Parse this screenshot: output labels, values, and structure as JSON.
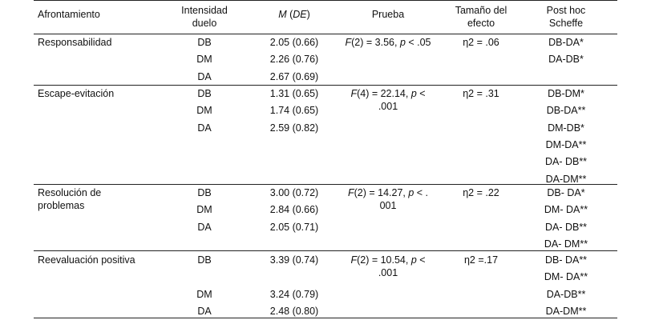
{
  "table": {
    "header": [
      "Afrontamiento",
      "Intensidad duelo",
      [
        "M",
        " (",
        "DE",
        ")"
      ],
      "Prueba",
      "Tamaño del efecto",
      "Post hoc Scheffe"
    ],
    "groups": [
      {
        "name": "Responsabilidad",
        "rows": [
          [
            "DB",
            "2.05 (0.66)"
          ],
          [
            "DM",
            "2.26 (0.76)"
          ],
          [
            "DA",
            "2.67 (0.69)"
          ]
        ],
        "test": [
          "F",
          "(2) = 3.56, ",
          "p",
          " < .05"
        ],
        "effect": "η2 = .06",
        "posthoc": [
          "DB-DA*",
          "DA-DB*"
        ]
      },
      {
        "name": "Escape-evitación",
        "rows": [
          [
            "DB",
            "1.31 (0.65)"
          ],
          [
            "DM",
            "1.74 (0.65)"
          ],
          [
            "DA",
            "2.59 (0.82)"
          ]
        ],
        "test": [
          "F",
          "(4) = 22.14, ",
          "p",
          " < .001"
        ],
        "effect": "η2 = .31",
        "posthoc": [
          "DB-DM*",
          "DB-DA**",
          "DM-DB*",
          "DM-DA**",
          "DA- DB**",
          "DA-DM**"
        ]
      },
      {
        "name": "Resolución de problemas",
        "rows": [
          [
            "DB",
            "3.00 (0.72)"
          ],
          [
            "DM",
            "2.84 (0.66)"
          ],
          [
            "DA",
            "2.05 (0.71)"
          ]
        ],
        "test": [
          "F",
          "(2) = 14.27, ",
          "p",
          " < . 001"
        ],
        "effect": "η2 = .22",
        "posthoc": [
          "DB- DA*",
          "DM- DA**",
          "DA- DB**",
          "DA- DM**"
        ]
      },
      {
        "name": "Reevaluación positiva",
        "rows": [
          [
            "DB",
            "3.39 (0.74)"
          ],
          [
            "DM",
            "3.24 (0.79)"
          ],
          [
            "DA",
            "2.48 (0.80)"
          ]
        ],
        "test": [
          "F",
          "(2) = 10.54, ",
          "p",
          " < .001"
        ],
        "effect": "η2 =.17",
        "posthoc": [
          "DB- DA**",
          "DM- DA**",
          "DA-DB**",
          "DA-DM**"
        ]
      }
    ]
  }
}
